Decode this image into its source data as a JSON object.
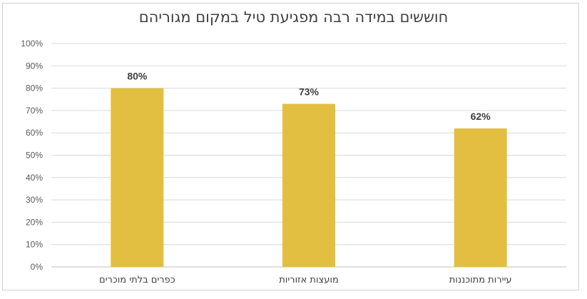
{
  "chart_data": {
    "type": "bar",
    "title": "חוששים במידה רבה מפגיעת טיל במקום מגוריהם",
    "categories": [
      "כפרים בלתי מוכרים",
      "מועצות אזוריות",
      "עיירות מתוכננות"
    ],
    "values": [
      80,
      73,
      62
    ],
    "data_labels": [
      "80%",
      "73%",
      "62%"
    ],
    "y_ticks": [
      "0%",
      "10%",
      "20%",
      "30%",
      "40%",
      "50%",
      "60%",
      "70%",
      "80%",
      "90%",
      "100%"
    ],
    "ylim": [
      0,
      100
    ],
    "grid": true,
    "bar_color": "#e2bf40",
    "grid_color": "#d9d9d9"
  }
}
